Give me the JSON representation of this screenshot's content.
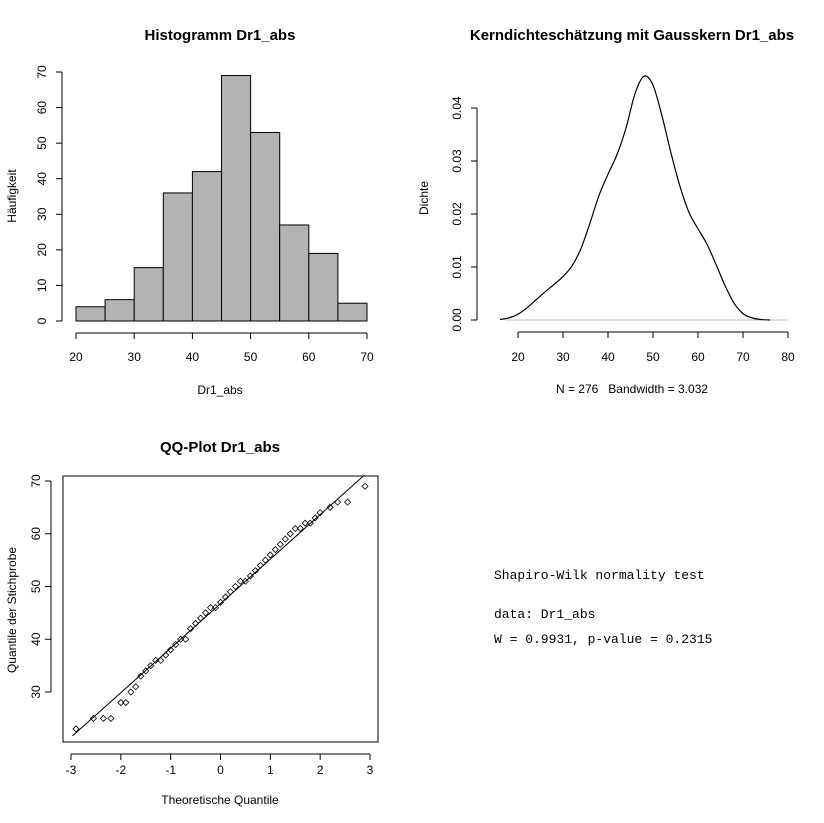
{
  "chart_data": [
    {
      "type": "bar",
      "title": "Histogramm Dr1_abs",
      "xlabel": "Dr1_abs",
      "ylabel": "Häufigkeit",
      "bins": [
        [
          20,
          25
        ],
        [
          25,
          30
        ],
        [
          30,
          35
        ],
        [
          35,
          40
        ],
        [
          40,
          45
        ],
        [
          45,
          50
        ],
        [
          50,
          55
        ],
        [
          55,
          60
        ],
        [
          60,
          65
        ],
        [
          65,
          70
        ]
      ],
      "values": [
        4,
        6,
        15,
        36,
        42,
        69,
        53,
        27,
        19,
        5
      ],
      "bar_color": "#b3b3b3",
      "xlim": [
        20,
        70
      ],
      "ylim": [
        0,
        70
      ],
      "xticks": [
        20,
        30,
        40,
        50,
        60,
        70
      ],
      "yticks": [
        0,
        10,
        20,
        30,
        40,
        50,
        60,
        70
      ]
    },
    {
      "type": "line",
      "title": "Kerndichteschätzung mit Gausskern Dr1_abs",
      "xlabel": "N = 276   Bandwidth = 3.032",
      "ylabel": "Dichte",
      "x": [
        16,
        18,
        20,
        22,
        24,
        26,
        28,
        30,
        32,
        34,
        36,
        38,
        40,
        42,
        44,
        46,
        48,
        50,
        52,
        54,
        56,
        58,
        60,
        62,
        64,
        66,
        68,
        70,
        72,
        74,
        76
      ],
      "y": [
        0.0001,
        0.0004,
        0.0011,
        0.0023,
        0.0038,
        0.0053,
        0.0067,
        0.0082,
        0.0102,
        0.0135,
        0.0183,
        0.0235,
        0.0275,
        0.0312,
        0.0362,
        0.0427,
        0.046,
        0.0443,
        0.0385,
        0.0315,
        0.0252,
        0.0203,
        0.0172,
        0.0143,
        0.0105,
        0.0065,
        0.0032,
        0.0012,
        0.0004,
        0.0001,
        0.0
      ],
      "xlim": [
        14,
        80
      ],
      "ylim": [
        0,
        0.046
      ],
      "xticks": [
        20,
        30,
        40,
        50,
        60,
        70,
        80
      ],
      "yticks": [
        "0.00",
        "0.01",
        "0.02",
        "0.03",
        "0.04"
      ]
    },
    {
      "type": "scatter",
      "title": "QQ-Plot Dr1_abs",
      "xlabel": "Theoretische Quantile",
      "ylabel": "Quantile der Stichprobe",
      "x": [
        -2.9,
        -2.55,
        -2.35,
        -2.2,
        -2.0,
        -1.9,
        -1.8,
        -1.7,
        -1.6,
        -1.5,
        -1.4,
        -1.3,
        -1.2,
        -1.1,
        -1.0,
        -0.9,
        -0.8,
        -0.7,
        -0.6,
        -0.5,
        -0.4,
        -0.3,
        -0.2,
        -0.1,
        0.0,
        0.1,
        0.2,
        0.3,
        0.4,
        0.5,
        0.6,
        0.7,
        0.8,
        0.9,
        1.0,
        1.1,
        1.2,
        1.3,
        1.4,
        1.5,
        1.6,
        1.7,
        1.8,
        1.9,
        2.0,
        2.2,
        2.35,
        2.55,
        2.9
      ],
      "y": [
        23,
        25,
        25,
        25,
        28,
        28,
        30,
        31,
        33,
        34,
        35,
        36,
        36,
        37,
        38,
        39,
        40,
        40,
        42,
        43,
        44,
        45,
        46,
        46,
        47,
        48,
        49,
        50,
        51,
        51,
        52,
        53,
        54,
        55,
        56,
        57,
        58,
        59,
        60,
        61,
        61,
        62,
        62,
        63,
        64,
        65,
        66,
        66,
        69
      ],
      "reference_line": [
        [
          -3.3,
          18.9
        ],
        [
          3.3,
          74.6
        ]
      ],
      "xlim": [
        -3,
        3
      ],
      "ylim": [
        20,
        71
      ],
      "xticks": [
        -3,
        -2,
        -1,
        0,
        1,
        2,
        3
      ],
      "yticks": [
        30,
        40,
        50,
        60,
        70
      ]
    }
  ],
  "test_output": {
    "line1": "Shapiro-Wilk normality test",
    "line2": "data: Dr1_abs",
    "line3": "W = 0.9931, p-value = 0.2315"
  }
}
